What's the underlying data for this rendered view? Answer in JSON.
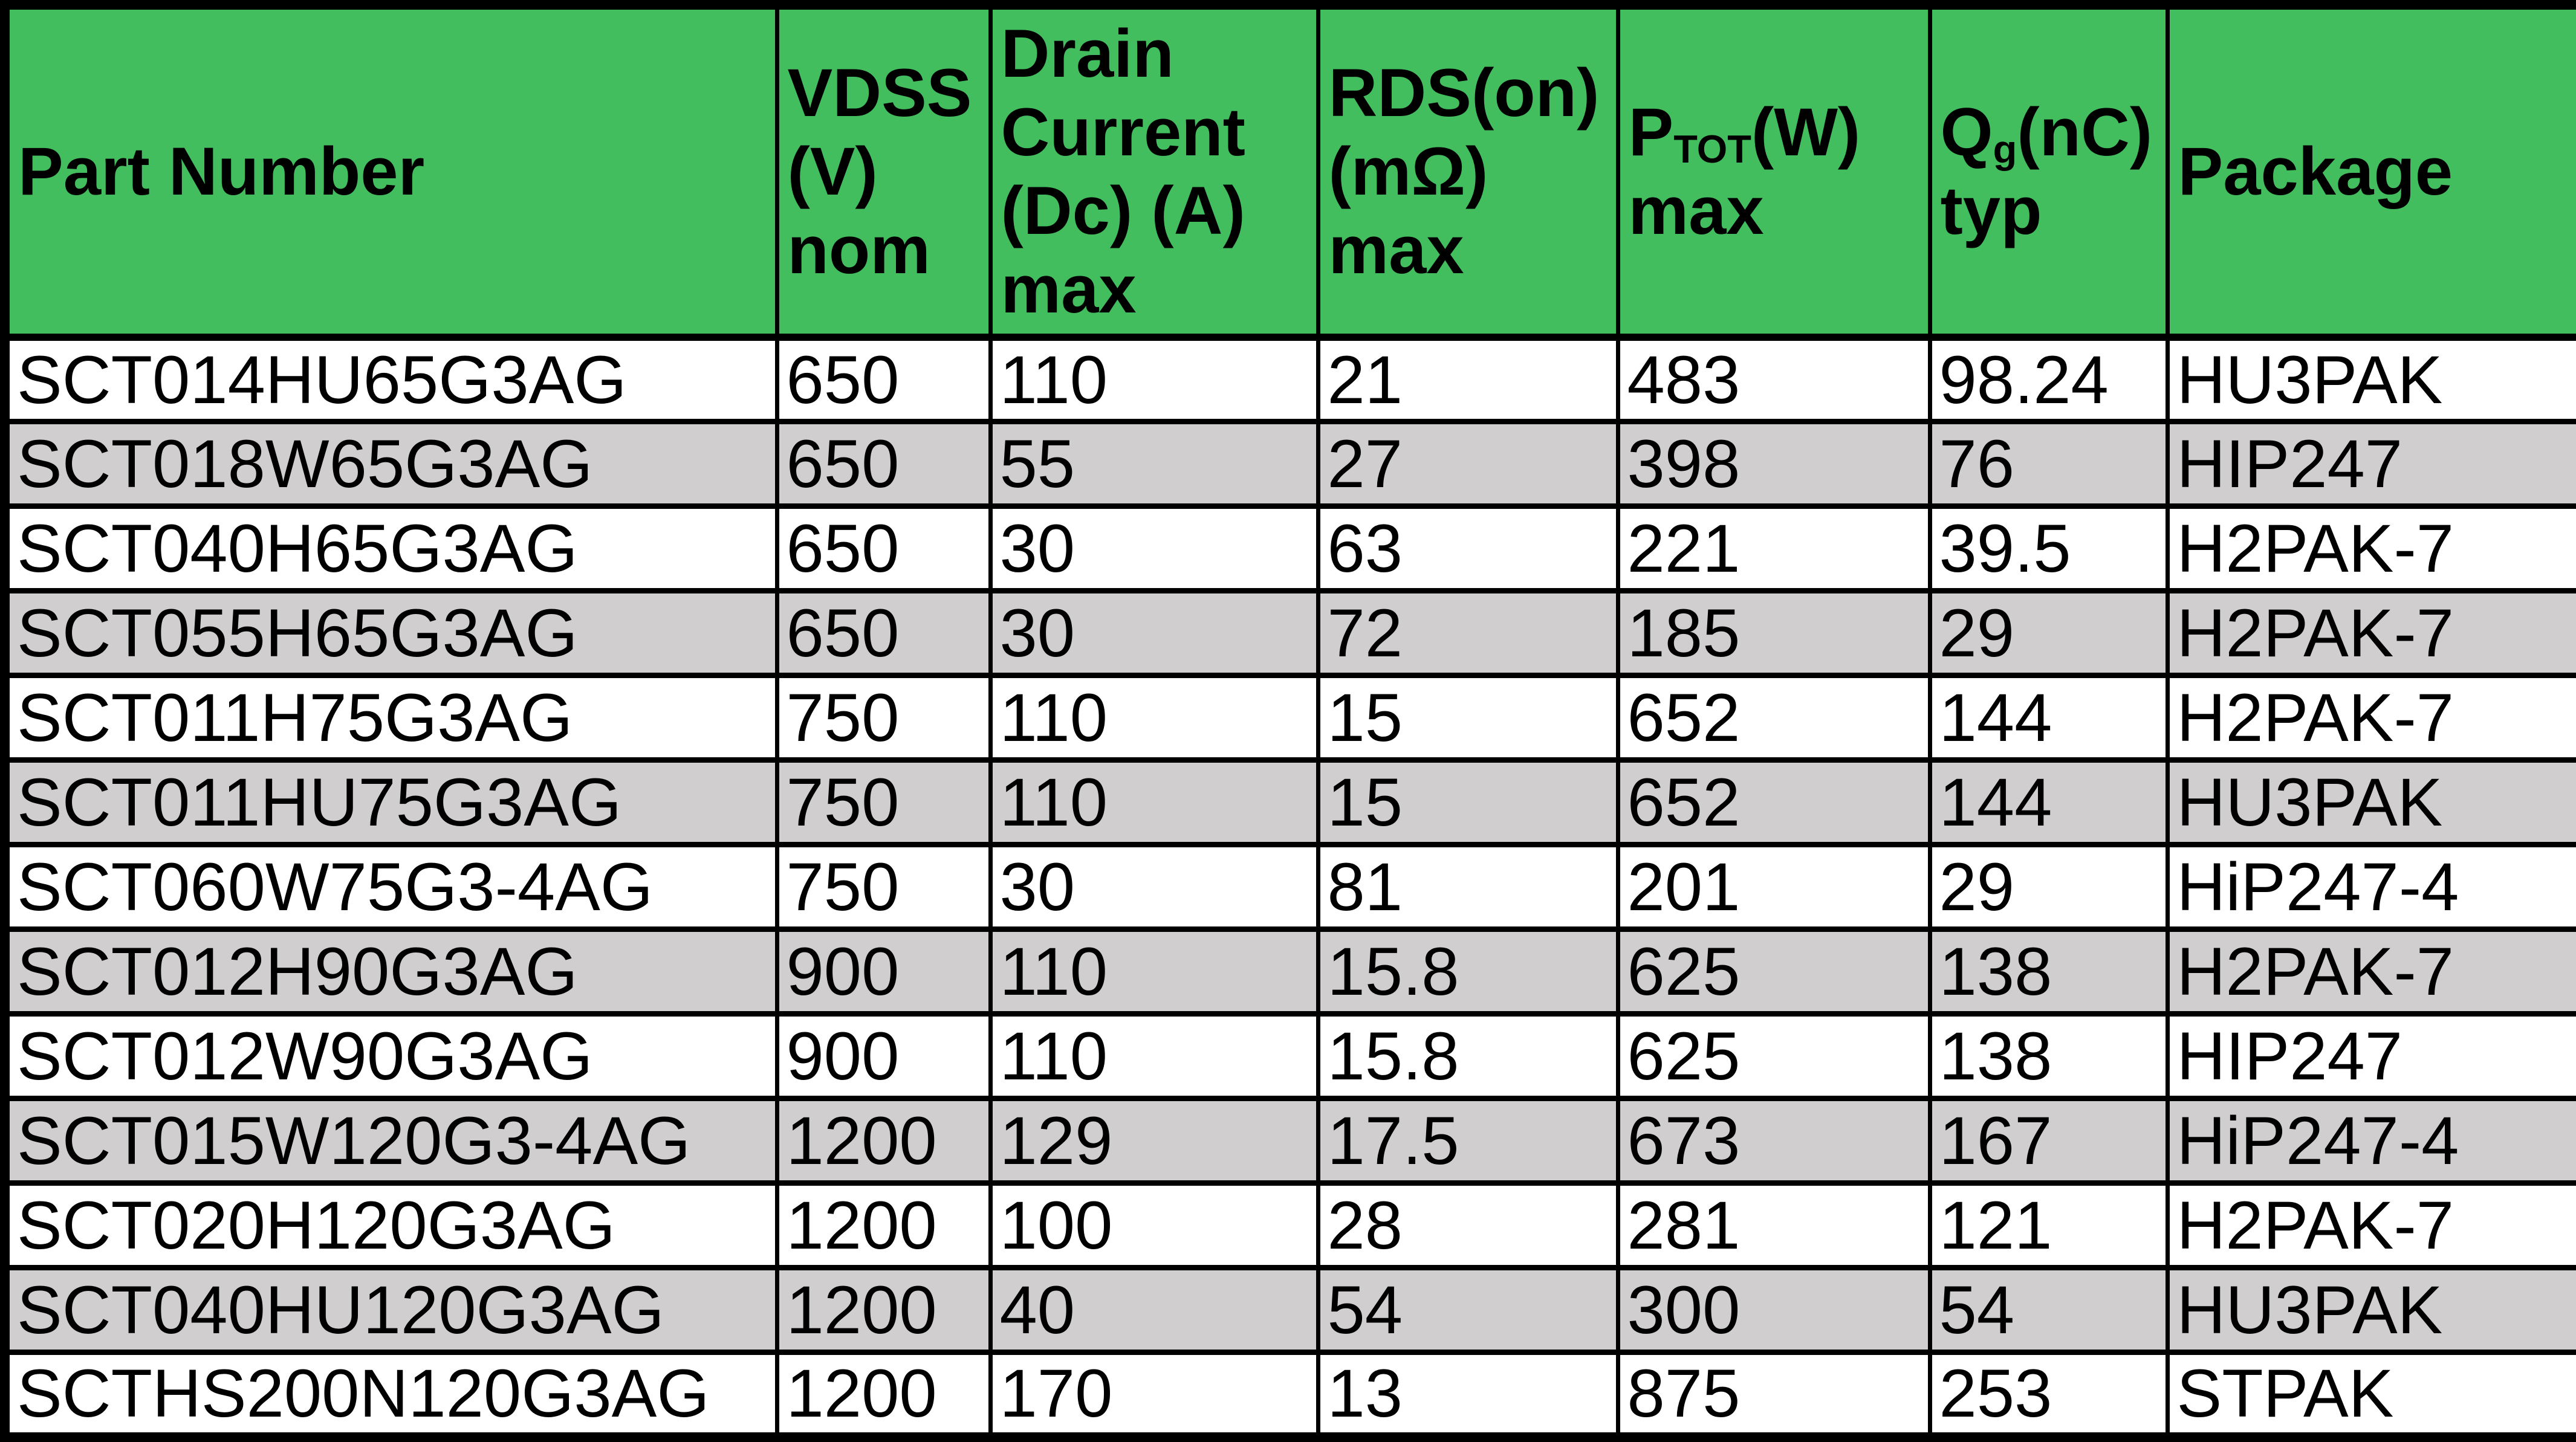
{
  "table": {
    "colors": {
      "header_bg": "#42BE5E",
      "alt_row_bg": "#D0CECE",
      "grid_border": "#000000",
      "row_bg": "#FFFFFF",
      "text": "#000000"
    },
    "headers": {
      "part": {
        "l1": "Part Number"
      },
      "vdss": {
        "l1": "VDSS",
        "l2": "(V)",
        "l3": "nom"
      },
      "drain": {
        "l1": "Drain",
        "l2": "Current",
        "l3": "(Dc) (A)",
        "l4": "max"
      },
      "rds": {
        "l1": "RDS(on)",
        "l2": "(mΩ)",
        "l3": "max"
      },
      "ptot": {
        "p": "P",
        "sub": "TOT",
        "rest": "(W)",
        "l2": "max"
      },
      "qg": {
        "p": "Q",
        "sub": "g",
        "rest": "(nC)",
        "l2": "typ"
      },
      "package": {
        "l1": "Package"
      }
    },
    "rows": [
      [
        "SCT014HU65G3AG",
        "650",
        "110",
        "21",
        "483",
        "98.24",
        "HU3PAK"
      ],
      [
        "SCT018W65G3AG",
        "650",
        "55",
        "27",
        "398",
        "76",
        "HIP247"
      ],
      [
        "SCT040H65G3AG",
        "650",
        "30",
        "63",
        "221",
        "39.5",
        "H2PAK-7"
      ],
      [
        "SCT055H65G3AG",
        "650",
        "30",
        "72",
        "185",
        "29",
        "H2PAK-7"
      ],
      [
        "SCT011H75G3AG",
        "750",
        "110",
        "15",
        "652",
        "144",
        "H2PAK-7"
      ],
      [
        "SCT011HU75G3AG",
        "750",
        "110",
        "15",
        "652",
        "144",
        "HU3PAK"
      ],
      [
        "SCT060W75G3-4AG",
        "750",
        "30",
        "81",
        "201",
        "29",
        "HiP247-4"
      ],
      [
        "SCT012H90G3AG",
        "900",
        "110",
        "15.8",
        "625",
        "138",
        "H2PAK-7"
      ],
      [
        "SCT012W90G3AG",
        "900",
        "110",
        "15.8",
        "625",
        "138",
        "HIP247"
      ],
      [
        "SCT015W120G3-4AG",
        "1200",
        "129",
        "17.5",
        "673",
        "167",
        "HiP247-4"
      ],
      [
        "SCT020H120G3AG",
        "1200",
        "100",
        "28",
        "281",
        "121",
        "H2PAK-7"
      ],
      [
        "SCT040HU120G3AG",
        "1200",
        "40",
        "54",
        "300",
        "54",
        "HU3PAK"
      ],
      [
        "SCTHS200N120G3AG",
        "1200",
        "170",
        "13",
        "875",
        "253",
        "STPAK"
      ]
    ]
  }
}
